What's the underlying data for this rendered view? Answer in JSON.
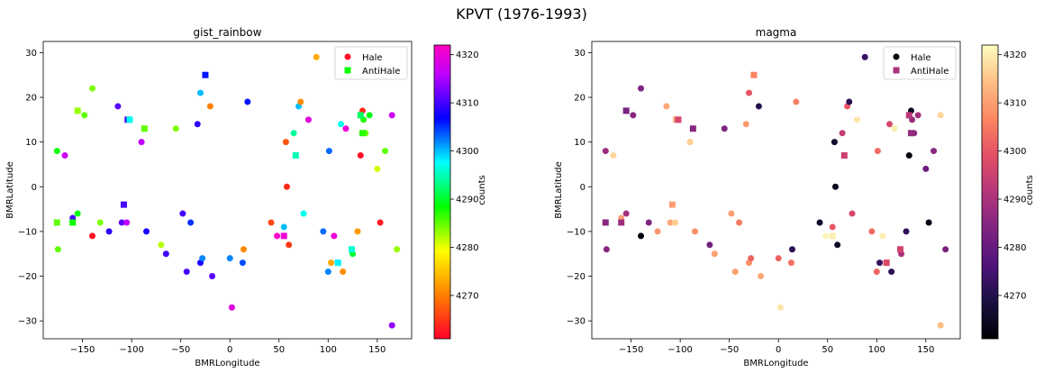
{
  "figure": {
    "suptitle": "KPVT (1976-1993)"
  },
  "chart_data": [
    {
      "type": "scatter",
      "title": "gist_rainbow",
      "xlabel": "BMRLongitude",
      "ylabel": "BMRLatitude",
      "xlim": [
        -190,
        185
      ],
      "ylim": [
        -34,
        32.5
      ],
      "xticks": [
        -150,
        -100,
        -50,
        0,
        50,
        100,
        150
      ],
      "yticks": [
        -30,
        -20,
        -10,
        0,
        10,
        20,
        30
      ],
      "colormap": "gist_rainbow",
      "colorbar": {
        "label": "counts",
        "ticks": [
          4270,
          4280,
          4290,
          4300,
          4310,
          4320
        ],
        "range": [
          4261,
          4322
        ]
      },
      "legend": {
        "placement": "top-right",
        "entries": [
          "Hale",
          "AntiHale"
        ]
      },
      "series": [
        {
          "name": "Hale",
          "marker": "circle",
          "points": [
            [
              -176,
              8,
              4288
            ],
            [
              -168,
              7,
              4317
            ],
            [
              -175,
              -14,
              4285
            ],
            [
              -160,
              -7,
              4310
            ],
            [
              -155,
              -6,
              4289
            ],
            [
              -148,
              16,
              4285
            ],
            [
              -140,
              -11,
              4262
            ],
            [
              -140,
              22,
              4284
            ],
            [
              -132,
              -8,
              4284
            ],
            [
              -123,
              -10,
              4309
            ],
            [
              -114,
              18,
              4311
            ],
            [
              -110,
              -8,
              4311
            ],
            [
              -105,
              -8,
              4316
            ],
            [
              -90,
              10,
              4316
            ],
            [
              -85,
              -10,
              4308
            ],
            [
              -70,
              -13,
              4282
            ],
            [
              -65,
              -15,
              4310
            ],
            [
              -55,
              13,
              4284
            ],
            [
              -48,
              -6,
              4310
            ],
            [
              -44,
              -19,
              4310
            ],
            [
              -40,
              -8,
              4305
            ],
            [
              -33,
              14,
              4309
            ],
            [
              -30,
              21,
              4300
            ],
            [
              -30,
              -17,
              4308
            ],
            [
              -28,
              -16,
              4302
            ],
            [
              -20,
              18,
              4270
            ],
            [
              -18,
              -20,
              4311
            ],
            [
              0,
              -16,
              4302
            ],
            [
              2,
              -27,
              4319
            ],
            [
              13,
              -17,
              4304
            ],
            [
              14,
              -14,
              4271
            ],
            [
              18,
              19,
              4306
            ],
            [
              42,
              -8,
              4266
            ],
            [
              48,
              -11,
              4321
            ],
            [
              55,
              -9,
              4300
            ],
            [
              57,
              10,
              4267
            ],
            [
              58,
              0,
              4264
            ],
            [
              60,
              -13,
              4265
            ],
            [
              65,
              12,
              4294
            ],
            [
              70,
              18,
              4300
            ],
            [
              72,
              19,
              4271
            ],
            [
              75,
              -6,
              4297
            ],
            [
              80,
              15,
              4319
            ],
            [
              88,
              29,
              4273
            ],
            [
              95,
              -10,
              4303
            ],
            [
              100,
              -19,
              4302
            ],
            [
              101,
              8,
              4303
            ],
            [
              103,
              -17,
              4273
            ],
            [
              106,
              -11,
              4320
            ],
            [
              110,
              -17,
              4303
            ],
            [
              113,
              14,
              4297
            ],
            [
              115,
              -19,
              4271
            ],
            [
              118,
              13,
              4320
            ],
            [
              125,
              -15,
              4290
            ],
            [
              130,
              -10,
              4272
            ],
            [
              133,
              7,
              4262
            ],
            [
              135,
              17,
              4264
            ],
            [
              136,
              15,
              4287
            ],
            [
              138,
              12,
              4285
            ],
            [
              142,
              16,
              4289
            ],
            [
              150,
              4,
              4281
            ],
            [
              153,
              -8,
              4263
            ],
            [
              158,
              8,
              4285
            ],
            [
              165,
              16,
              4317
            ],
            [
              165,
              -31,
              4314
            ],
            [
              170,
              -14,
              4283
            ]
          ]
        },
        {
          "name": "AntiHale",
          "marker": "square",
          "points": [
            [
              -176,
              -8,
              4285
            ],
            [
              -160,
              -8,
              4288
            ],
            [
              -155,
              17,
              4283
            ],
            [
              -108,
              -4,
              4310
            ],
            [
              -104,
              15,
              4310
            ],
            [
              -102,
              15,
              4297
            ],
            [
              -87,
              13,
              4285
            ],
            [
              -25,
              25,
              4306
            ],
            [
              55,
              -11,
              4320
            ],
            [
              67,
              7,
              4295
            ],
            [
              110,
              -17,
              4298
            ],
            [
              124,
              -14,
              4296
            ],
            [
              135,
              12,
              4287
            ],
            [
              133,
              16,
              4292
            ]
          ]
        }
      ]
    },
    {
      "type": "scatter",
      "title": "magma",
      "xlabel": "BMRLongitude",
      "ylabel": "BMRLatitude",
      "xlim": [
        -190,
        185
      ],
      "ylim": [
        -34,
        32.5
      ],
      "xticks": [
        -150,
        -100,
        -50,
        0,
        50,
        100,
        150
      ],
      "yticks": [
        -30,
        -20,
        -10,
        0,
        10,
        20,
        30
      ],
      "colormap": "magma",
      "colorbar": {
        "label": "counts",
        "ticks": [
          4270,
          4280,
          4290,
          4300,
          4310,
          4320
        ],
        "range": [
          4261,
          4322
        ]
      },
      "legend": {
        "placement": "top-right",
        "entries": [
          "Hale",
          "AntiHale"
        ]
      },
      "series": [
        {
          "name": "Hale",
          "marker": "circle",
          "points": [
            [
              -176,
              8,
              4288
            ],
            [
              -168,
              7,
              4317
            ],
            [
              -175,
              -14,
              4285
            ],
            [
              -160,
              -7,
              4310
            ],
            [
              -155,
              -6,
              4289
            ],
            [
              -148,
              16,
              4285
            ],
            [
              -140,
              -11,
              4262
            ],
            [
              -140,
              22,
              4284
            ],
            [
              -132,
              -8,
              4284
            ],
            [
              -123,
              -10,
              4309
            ],
            [
              -114,
              18,
              4311
            ],
            [
              -110,
              -8,
              4311
            ],
            [
              -105,
              -8,
              4316
            ],
            [
              -90,
              10,
              4316
            ],
            [
              -85,
              -10,
              4308
            ],
            [
              -70,
              -13,
              4282
            ],
            [
              -65,
              -15,
              4310
            ],
            [
              -55,
              13,
              4284
            ],
            [
              -48,
              -6,
              4310
            ],
            [
              -44,
              -19,
              4310
            ],
            [
              -40,
              -8,
              4305
            ],
            [
              -33,
              14,
              4309
            ],
            [
              -30,
              21,
              4300
            ],
            [
              -30,
              -17,
              4308
            ],
            [
              -28,
              -16,
              4302
            ],
            [
              -20,
              18,
              4270
            ],
            [
              -18,
              -20,
              4311
            ],
            [
              0,
              -16,
              4302
            ],
            [
              2,
              -27,
              4319
            ],
            [
              13,
              -17,
              4304
            ],
            [
              14,
              -14,
              4271
            ],
            [
              18,
              19,
              4306
            ],
            [
              42,
              -8,
              4266
            ],
            [
              48,
              -11,
              4321
            ],
            [
              55,
              -9,
              4300
            ],
            [
              57,
              10,
              4267
            ],
            [
              58,
              0,
              4264
            ],
            [
              60,
              -13,
              4265
            ],
            [
              65,
              12,
              4294
            ],
            [
              70,
              18,
              4300
            ],
            [
              72,
              19,
              4271
            ],
            [
              75,
              -6,
              4297
            ],
            [
              80,
              15,
              4319
            ],
            [
              88,
              29,
              4273
            ],
            [
              95,
              -10,
              4303
            ],
            [
              100,
              -19,
              4302
            ],
            [
              101,
              8,
              4303
            ],
            [
              103,
              -17,
              4273
            ],
            [
              106,
              -11,
              4320
            ],
            [
              110,
              -17,
              4303
            ],
            [
              113,
              14,
              4297
            ],
            [
              115,
              -19,
              4271
            ],
            [
              118,
              13,
              4320
            ],
            [
              125,
              -15,
              4290
            ],
            [
              130,
              -10,
              4272
            ],
            [
              133,
              7,
              4262
            ],
            [
              135,
              17,
              4264
            ],
            [
              136,
              15,
              4287
            ],
            [
              138,
              12,
              4285
            ],
            [
              142,
              16,
              4289
            ],
            [
              150,
              4,
              4281
            ],
            [
              153,
              -8,
              4263
            ],
            [
              158,
              8,
              4285
            ],
            [
              165,
              16,
              4317
            ],
            [
              165,
              -31,
              4314
            ],
            [
              170,
              -14,
              4283
            ]
          ]
        },
        {
          "name": "AntiHale",
          "marker": "square",
          "points": [
            [
              -176,
              -8,
              4285
            ],
            [
              -160,
              -8,
              4288
            ],
            [
              -155,
              17,
              4283
            ],
            [
              -108,
              -4,
              4310
            ],
            [
              -104,
              15,
              4310
            ],
            [
              -102,
              15,
              4297
            ],
            [
              -87,
              13,
              4285
            ],
            [
              -25,
              25,
              4306
            ],
            [
              55,
              -11,
              4320
            ],
            [
              67,
              7,
              4295
            ],
            [
              110,
              -17,
              4298
            ],
            [
              124,
              -14,
              4296
            ],
            [
              135,
              12,
              4287
            ],
            [
              133,
              16,
              4292
            ]
          ]
        }
      ]
    }
  ]
}
